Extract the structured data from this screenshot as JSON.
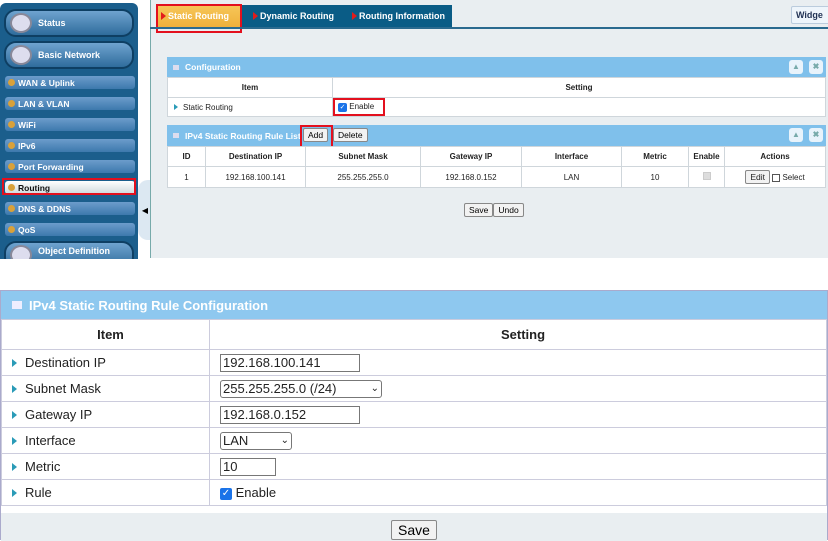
{
  "sidebar": {
    "items": [
      {
        "label": "Status"
      },
      {
        "label": "Basic Network"
      },
      {
        "label": "WAN & Uplink"
      },
      {
        "label": "LAN & VLAN"
      },
      {
        "label": "WiFi"
      },
      {
        "label": "IPv6"
      },
      {
        "label": "Port Forwarding"
      },
      {
        "label": "Routing"
      },
      {
        "label": "DNS & DDNS"
      },
      {
        "label": "QoS"
      },
      {
        "label": "Object Definition"
      }
    ]
  },
  "tabs": [
    "Static Routing",
    "Dynamic Routing",
    "Routing Information"
  ],
  "widget_label": "Widge",
  "config": {
    "title": "Configuration",
    "col_item": "Item",
    "col_setting": "Setting",
    "row_label": "Static Routing",
    "enable_label": "Enable",
    "enabled": true
  },
  "rule_list": {
    "title": "IPv4 Static Routing Rule List",
    "add": "Add",
    "delete": "Delete",
    "columns": [
      "ID",
      "Destination IP",
      "Subnet Mask",
      "Gateway IP",
      "Interface",
      "Metric",
      "Enable",
      "Actions"
    ],
    "rows": [
      {
        "id": "1",
        "dest": "192.168.100.141",
        "mask": "255.255.255.0",
        "gw": "192.168.0.152",
        "iface": "LAN",
        "metric": "10",
        "edit": "Edit",
        "select": "Select"
      }
    ]
  },
  "save": "Save",
  "undo": "Undo",
  "rule_config": {
    "title": "IPv4 Static Routing Rule Configuration",
    "col_item": "Item",
    "col_setting": "Setting",
    "dest_label": "Destination IP",
    "dest": "192.168.100.141",
    "mask_label": "Subnet Mask",
    "mask": "255.255.255.0 (/24)",
    "gw_label": "Gateway IP",
    "gw": "192.168.0.152",
    "iface_label": "Interface",
    "iface": "LAN",
    "metric_label": "Metric",
    "metric": "10",
    "rule_label": "Rule",
    "rule_enable": "Enable",
    "save": "Save"
  }
}
